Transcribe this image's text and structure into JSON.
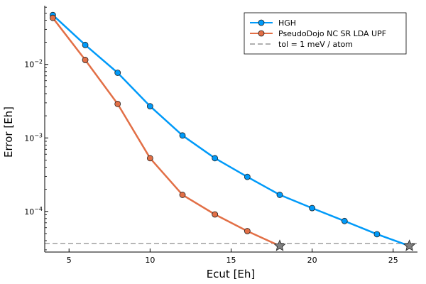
{
  "chart_data": {
    "type": "line",
    "xlabel": "Ecut [Eh]",
    "ylabel": "Error [Eh]",
    "x_scale": "linear",
    "y_scale": "log",
    "xlim": [
      3.5,
      26.5
    ],
    "ylim": [
      2.8e-05,
      0.063
    ],
    "x_ticks": [
      5,
      10,
      15,
      20,
      25
    ],
    "y_ticks": [
      {
        "value": 0.01,
        "mantissa": "10",
        "exp": "-2"
      },
      {
        "value": 0.001,
        "mantissa": "10",
        "exp": "-3"
      },
      {
        "value": 0.0001,
        "mantissa": "10",
        "exp": "-4"
      }
    ],
    "grid": false,
    "legend_position": "top-right",
    "series": [
      {
        "name": "HGH",
        "color": "#009af9",
        "marker": "circle",
        "x": [
          4,
          6,
          8,
          10,
          12,
          14,
          16,
          18,
          20,
          22,
          24,
          26
        ],
        "y": [
          0.047,
          0.0184,
          0.0077,
          0.0027,
          0.00108,
          0.00053,
          0.000295,
          0.000168,
          0.000111,
          7.4e-05,
          4.9e-05,
          3.4e-05
        ]
      },
      {
        "name": "PseudoDojo NC SR LDA UPF",
        "color": "#e26f46",
        "marker": "circle",
        "x": [
          4,
          6,
          8,
          10,
          12,
          14,
          16,
          18
        ],
        "y": [
          0.043,
          0.0115,
          0.0029,
          0.00053,
          0.000168,
          9.1e-05,
          5.4e-05,
          3.4e-05
        ]
      }
    ],
    "reference_line": {
      "name": "tol = 1 meV / atom",
      "y": 3.67e-05,
      "color": "#808080",
      "style": "dashed"
    },
    "star_markers": [
      {
        "x": 18,
        "y": 3.4e-05,
        "color": "#808080"
      },
      {
        "x": 26,
        "y": 3.4e-05,
        "color": "#808080"
      }
    ]
  }
}
